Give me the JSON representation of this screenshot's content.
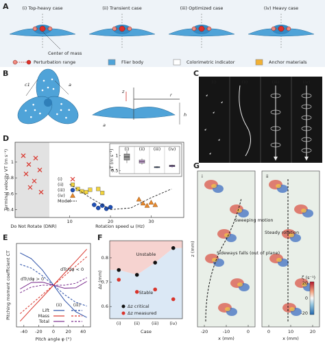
{
  "panel_labels": [
    "A",
    "B",
    "C",
    "D",
    "E",
    "F",
    "G"
  ],
  "panel_a": {
    "cases": [
      "(i) Top-heavy case",
      "(ii) Transient case",
      "(iii) Optimized case",
      "(iv) Heavy case"
    ],
    "center_label": "Center of mass",
    "legend": [
      "Perturbation range",
      "Flier body",
      "Colorimetric indicator",
      "Anchor materials"
    ]
  },
  "panel_b": {
    "labels": [
      "c1",
      "a",
      "z",
      "r",
      "a",
      "h"
    ]
  },
  "panel_c": {
    "labels": [
      "(i)",
      "(ii)",
      "(iii)",
      "(iv)"
    ]
  },
  "panel_g": {
    "panels": [
      "i",
      "ii"
    ],
    "y_label": "z (mm)",
    "x_label": "x (mm)",
    "xticks_i": [
      -20,
      -10,
      0
    ],
    "xticks_ii": [
      0,
      10,
      20
    ],
    "annotations": [
      "Sweeping motion",
      "Sideways falls (out of plane)",
      "Steady rotation"
    ],
    "colorbar_label": "ζ (s⁻¹)",
    "colorbar_ticks": [
      20,
      0,
      -20
    ]
  },
  "chart_data": [
    {
      "type": "scatter",
      "y_label": "Terminal velocity VT (m s⁻¹)",
      "x_label": "Rotation speed ω (Hz)",
      "dnr_label": "Do Not Rotate (DNR)",
      "xlim": [
        5,
        38
      ],
      "xticks": [
        10,
        20,
        30
      ],
      "ylim": [
        0.3,
        1.25
      ],
      "yticks": [
        0.4,
        0.6,
        0.8,
        1
      ],
      "series": [
        {
          "name": "(i)",
          "color": "#d9342b",
          "marker": "x",
          "values": [
            1.08,
            1.05,
            0.97,
            0.9,
            0.85,
            0.76,
            0.68,
            0.62
          ]
        },
        {
          "name": "(ii)",
          "color": "#f2d33a",
          "marker": "square",
          "x": [
            12,
            13,
            14,
            15,
            17,
            18
          ],
          "values": [
            0.66,
            0.63,
            0.62,
            0.65,
            0.66,
            0.61
          ]
        },
        {
          "name": "(iii)",
          "color": "#1f4fb5",
          "marker": "circle",
          "x": [
            16,
            17,
            18,
            19,
            20
          ],
          "values": [
            0.46,
            0.42,
            0.45,
            0.41,
            0.43
          ]
        },
        {
          "name": "(iv)",
          "color": "#e8892c",
          "marker": "triangle",
          "x": [
            27,
            28,
            29,
            30,
            31
          ],
          "values": [
            0.53,
            0.48,
            0.45,
            0.49,
            0.46
          ]
        },
        {
          "name": "Model",
          "color": "#222222",
          "marker": "dashed",
          "x": [
            10,
            15,
            20,
            25,
            30,
            35
          ],
          "values": [
            0.72,
            0.55,
            0.4,
            0.42,
            0.55,
            0.66
          ]
        }
      ],
      "inset": {
        "y_label": "vT (m s⁻¹)",
        "categories": [
          "(i)",
          "(ii)",
          "(iii)",
          "(iv)"
        ],
        "ylim": [
          0.4,
          1.3
        ],
        "yticks": [
          0.5,
          1
        ],
        "colors": [
          "#9a9a9a",
          "#c9a2d8",
          "#5b86d6",
          "#9b6fd0"
        ],
        "boxes": [
          {
            "min": 0.75,
            "q1": 0.85,
            "median": 0.95,
            "q3": 1.05,
            "max": 1.15
          },
          {
            "min": 0.7,
            "q1": 0.75,
            "median": 0.8,
            "q3": 0.85,
            "max": 0.9
          },
          {
            "min": 0.58,
            "q1": 0.6,
            "median": 0.62,
            "q3": 0.63,
            "max": 0.65
          },
          {
            "min": 0.6,
            "q1": 0.63,
            "median": 0.66,
            "q3": 0.68,
            "max": 0.7
          }
        ]
      }
    },
    {
      "type": "line",
      "y_label": "Pitching moment coefficient CT",
      "x_label": "Pitch angle φ (°)",
      "xlim": [
        -50,
        50
      ],
      "xticks": [
        -40,
        -20,
        0,
        20,
        40
      ],
      "ylim": [
        -1.1,
        1.1
      ],
      "x": [
        -45,
        -30,
        -15,
        0,
        15,
        30,
        45
      ],
      "line_styles": [
        "(ii)",
        "(iii)"
      ],
      "annotations": [
        "dTr/dφ > 0",
        "dTr/dφ < 0"
      ],
      "series": [
        {
          "name": "Lift",
          "color": "#2a4fa8",
          "values": [
            0.85,
            0.7,
            0.4,
            0,
            -0.4,
            -0.7,
            -0.85
          ],
          "values_dashed": [
            0.55,
            0.45,
            0.25,
            0,
            -0.25,
            -0.45,
            -0.55
          ]
        },
        {
          "name": "Mass",
          "color": "#d9342b",
          "values": [
            -0.95,
            -0.63,
            -0.32,
            0,
            0.32,
            0.63,
            0.95
          ],
          "values_dashed": [
            -0.75,
            -0.5,
            -0.25,
            0,
            0.25,
            0.5,
            0.75
          ]
        },
        {
          "name": "Total",
          "color": "#7b2d8e",
          "values": [
            -0.1,
            0.07,
            0.08,
            0,
            -0.08,
            -0.07,
            0.1
          ],
          "values_dashed": [
            -0.2,
            -0.05,
            0,
            0,
            0,
            0.05,
            0.2
          ]
        }
      ]
    },
    {
      "type": "scatter",
      "y_label": "Δz (mm)",
      "x_label": "Case",
      "categories": [
        "(i)",
        "(ii)",
        "(iii)",
        "(iv)"
      ],
      "ylim": [
        0.55,
        0.87
      ],
      "yticks": [
        0.6,
        0.7,
        0.8
      ],
      "regions": [
        "Unstable",
        "Stable"
      ],
      "region_colors": [
        "#f6d3d0",
        "#dbe8f5"
      ],
      "series": [
        {
          "name": "Δz critical",
          "color": "#111111",
          "values": [
            0.75,
            0.73,
            0.78,
            0.84
          ]
        },
        {
          "name": "Δz measured",
          "color": "#d9342b",
          "values": [
            0.71,
            0.66,
            0.67,
            0.63
          ]
        }
      ]
    }
  ]
}
